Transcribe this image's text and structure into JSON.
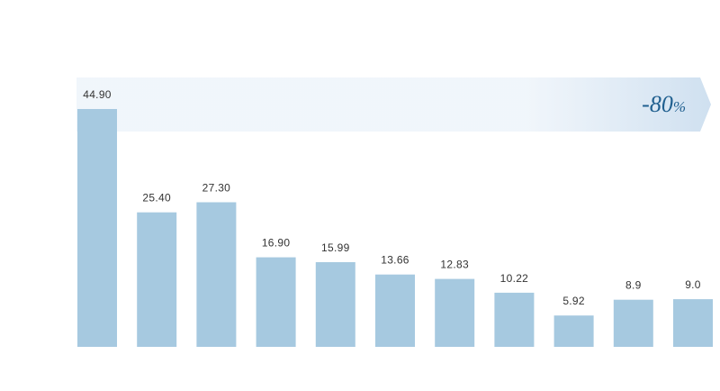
{
  "chart_data": {
    "type": "bar",
    "title": "",
    "xlabel": "",
    "ylabel": "",
    "ylim": [
      0,
      44.9
    ],
    "grid": false,
    "series": [
      {
        "values": [
          44.9,
          25.4,
          27.3,
          16.9,
          15.99,
          13.66,
          12.83,
          10.22,
          5.92,
          8.9,
          9.0
        ],
        "value_labels": [
          "44.90",
          "25.40",
          "27.30",
          "16.90",
          "15.99",
          "13.66",
          "12.83",
          "10.22",
          "5.92",
          "8.9",
          "9.0"
        ],
        "color": "#a6c9e0"
      }
    ],
    "annotation": {
      "shape": "arrow-band",
      "label": "-80",
      "unit": "%",
      "color": "#1f5f8f",
      "band_color": "#eef4fa"
    }
  }
}
